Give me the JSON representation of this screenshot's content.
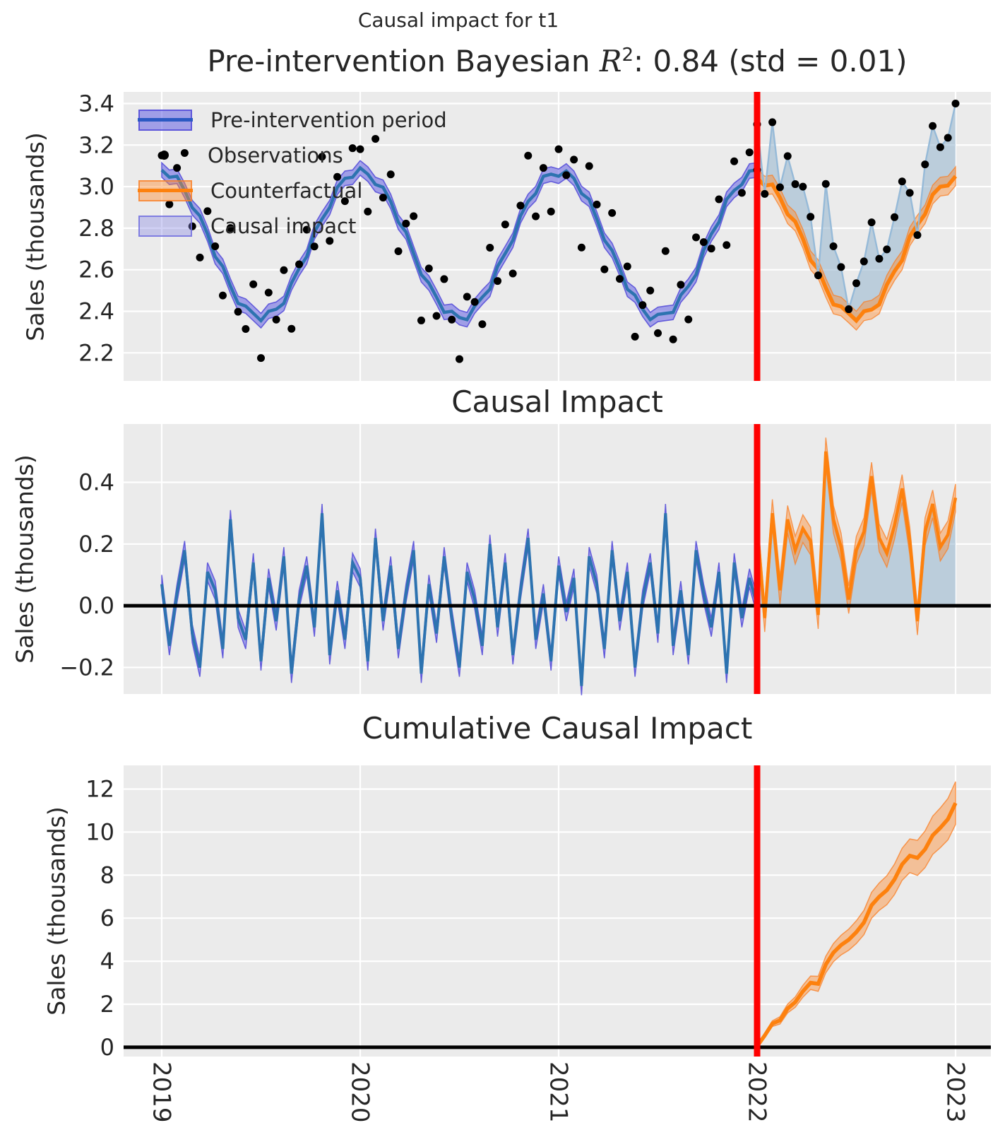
{
  "figure": {
    "suptitle": "Causal impact for t1",
    "panel1_title": {
      "prefix": "Pre-intervention Bayesian ",
      "math_var": "R",
      "math_exp": "2",
      "suffix": ": 0.84 (std = 0.01)"
    }
  },
  "legend": {
    "items": [
      {
        "label": "Pre-intervention period",
        "swatch": "band-blue"
      },
      {
        "label": "Observations",
        "swatch": "dot"
      },
      {
        "label": "Counterfactual",
        "swatch": "band-orange"
      },
      {
        "label": "Causal impact",
        "swatch": "patch-lavender"
      }
    ]
  },
  "colors": {
    "axes_bg": "#ebebeb",
    "grid": "#ffffff",
    "text": "#262626",
    "pre_line": "#2d73b0",
    "pre_band_fill": "rgba(98,95,227,0.55)",
    "pre_band_edge": "rgba(82,74,216,0.85)",
    "legend_pre_line": "#2b59c3",
    "orange_line": "#fd810e",
    "orange_band_fill": "rgba(253,140,52,0.45)",
    "orange_band_edge": "rgba(250,125,35,0.75)",
    "impact_fill": "rgba(147,180,205,0.55)",
    "obs_line": "#96bad8",
    "dot": "#000000",
    "intervention_line": "#ff0000",
    "zero_line": "#000000"
  },
  "chart_data": {
    "type": "line",
    "x_axis": {
      "years": [
        "2019",
        "2020",
        "2021",
        "2022",
        "2023"
      ],
      "xlim": [
        2018.81,
        2023.18
      ],
      "intervention_x": 2022
    },
    "panels": [
      {
        "id": "model-fit",
        "ylabel": "Sales (thousands)",
        "ylim": [
          2.065,
          3.456
        ],
        "yticks": [
          {
            "v": 3.4,
            "label": "3.4"
          },
          {
            "v": 3.2,
            "label": "3.2"
          },
          {
            "v": 3.0,
            "label": "3.0"
          },
          {
            "v": 2.8,
            "label": "2.8"
          },
          {
            "v": 2.6,
            "label": "2.6"
          },
          {
            "v": 2.4,
            "label": "2.4"
          },
          {
            "v": 2.2,
            "label": "2.2"
          }
        ],
        "pre": {
          "x_start": 2019,
          "x_step": 0.0384615,
          "band_hw": 0.035,
          "fit": [
            3.08,
            3.045,
            3.05,
            2.982,
            2.899,
            2.859,
            2.772,
            2.663,
            2.616,
            2.521,
            2.438,
            2.425,
            2.39,
            2.355,
            2.4,
            2.41,
            2.438,
            2.536,
            2.606,
            2.663,
            2.782,
            2.844,
            2.899,
            2.997,
            3.04,
            3.045,
            3.09,
            3.06,
            3.01,
            2.997,
            2.929,
            2.829,
            2.782,
            2.678,
            2.576,
            2.536,
            2.468,
            2.395,
            2.4,
            2.37,
            2.36,
            2.425,
            2.468,
            2.506,
            2.616,
            2.678,
            2.742,
            2.859,
            2.929,
            2.967,
            3.05,
            3.06,
            3.05,
            3.075,
            3.04,
            2.967,
            2.939,
            2.844,
            2.742,
            2.693,
            2.606,
            2.506,
            2.478,
            2.41,
            2.36,
            2.385,
            2.39,
            2.395,
            2.478,
            2.521,
            2.576,
            2.693,
            2.772,
            2.829,
            2.939,
            2.982,
            3.01,
            3.075,
            3.08
          ],
          "obs": [
            3.15,
            2.915,
            3.09,
            3.162,
            2.809,
            2.659,
            2.882,
            2.713,
            2.476,
            2.801,
            2.398,
            2.315,
            2.53,
            2.175,
            2.49,
            2.36,
            2.598,
            2.316,
            2.626,
            2.793,
            2.712,
            3.144,
            2.739,
            3.047,
            2.93,
            3.185,
            3.18,
            2.88,
            3.23,
            2.947,
            3.059,
            2.689,
            2.822,
            2.858,
            2.356,
            2.606,
            2.378,
            2.555,
            2.36,
            2.17,
            2.47,
            2.445,
            2.338,
            2.706,
            2.546,
            2.818,
            2.582,
            2.909,
            3.149,
            2.857,
            3.09,
            2.88,
            3.18,
            3.055,
            3.13,
            2.707,
            3.099,
            2.914,
            2.602,
            2.873,
            2.556,
            2.616,
            2.278,
            2.43,
            2.5,
            2.295,
            2.69,
            2.265,
            2.528,
            2.361,
            2.756,
            2.733,
            2.702,
            2.939,
            2.719,
            3.122,
            2.97,
            3.165,
            3.08
          ]
        },
        "post": {
          "x_start": 2022,
          "x_step": 0.0384615,
          "band_hw": 0.045,
          "counterfactual": [
            3.04,
            3.005,
            3.01,
            2.947,
            2.867,
            2.832,
            2.75,
            2.645,
            2.603,
            2.513,
            2.433,
            2.423,
            2.39,
            2.355,
            2.4,
            2.408,
            2.433,
            2.528,
            2.593,
            2.645,
            2.76,
            2.817,
            2.867,
            2.962,
            3.0,
            3.005,
            3.05
          ],
          "obs": [
            3.3,
            2.965,
            3.31,
            2.997,
            3.147,
            3.012,
            3.0,
            2.855,
            2.573,
            3.013,
            2.713,
            2.613,
            2.41,
            2.535,
            2.64,
            2.828,
            2.653,
            2.698,
            2.853,
            3.025,
            2.97,
            2.767,
            3.107,
            3.292,
            3.19,
            3.235,
            3.4
          ]
        }
      },
      {
        "id": "causal-impact",
        "title": "Causal Impact",
        "ylabel": "Sales (thousands)",
        "ylim": [
          -0.286,
          0.589
        ],
        "yticks": [
          {
            "v": 0.4,
            "label": "0.4"
          },
          {
            "v": 0.2,
            "label": "0.2"
          },
          {
            "v": 0.0,
            "label": "0.0"
          },
          {
            "v": -0.2,
            "label": "−0.2"
          }
        ],
        "pre_band_hw": 0.03,
        "pre_residuals": [
          0.07,
          -0.13,
          0.04,
          0.18,
          -0.09,
          -0.2,
          0.11,
          0.05,
          -0.14,
          0.28,
          -0.04,
          -0.11,
          0.14,
          -0.18,
          0.09,
          -0.05,
          0.16,
          -0.22,
          0.02,
          0.13,
          -0.07,
          0.3,
          -0.16,
          0.05,
          -0.11,
          0.14,
          0.09,
          -0.18,
          0.22,
          -0.05,
          0.13,
          -0.14,
          0.04,
          0.18,
          -0.22,
          0.07,
          -0.09,
          0.16,
          -0.04,
          -0.2,
          0.11,
          0.02,
          -0.13,
          0.2,
          -0.07,
          0.14,
          -0.16,
          0.05,
          0.22,
          -0.11,
          0.04,
          -0.18,
          0.13,
          -0.02,
          0.09,
          -0.26,
          0.16,
          0.07,
          -0.14,
          0.18,
          -0.05,
          0.11,
          -0.2,
          0.02,
          0.14,
          -0.09,
          0.3,
          -0.13,
          0.05,
          -0.16,
          0.18,
          0.04,
          -0.07,
          0.11,
          -0.22,
          0.14,
          -0.04,
          0.09,
          0.0
        ],
        "post_band_hw": 0.045,
        "post_impact": [
          0.26,
          -0.04,
          0.3,
          0.05,
          0.28,
          0.18,
          0.25,
          0.21,
          -0.03,
          0.5,
          0.28,
          0.19,
          0.02,
          0.18,
          0.24,
          0.42,
          0.22,
          0.17,
          0.26,
          0.38,
          0.21,
          -0.05,
          0.24,
          0.33,
          0.19,
          0.23,
          0.35
        ]
      },
      {
        "id": "cumulative-causal-impact",
        "title": "Cumulative Causal Impact",
        "ylabel": "Sales (thousands)",
        "ylim": [
          -0.43,
          13.1
        ],
        "yticks": [
          {
            "v": 12,
            "label": "12"
          },
          {
            "v": 10,
            "label": "10"
          },
          {
            "v": 8,
            "label": "8"
          },
          {
            "v": 6,
            "label": "6"
          },
          {
            "v": 4,
            "label": "4"
          },
          {
            "v": 2,
            "label": "2"
          },
          {
            "v": 0,
            "label": "0"
          }
        ],
        "cumulative": [
          0.05,
          0.55,
          1.1,
          1.25,
          1.8,
          2.1,
          2.6,
          3.0,
          2.95,
          3.85,
          4.4,
          4.75,
          5.0,
          5.35,
          5.8,
          6.6,
          7.0,
          7.3,
          7.8,
          8.5,
          8.9,
          8.8,
          9.2,
          9.85,
          10.2,
          10.6,
          11.35
        ],
        "band_hw_start": 0.06,
        "band_hw_step": 0.036
      }
    ]
  }
}
